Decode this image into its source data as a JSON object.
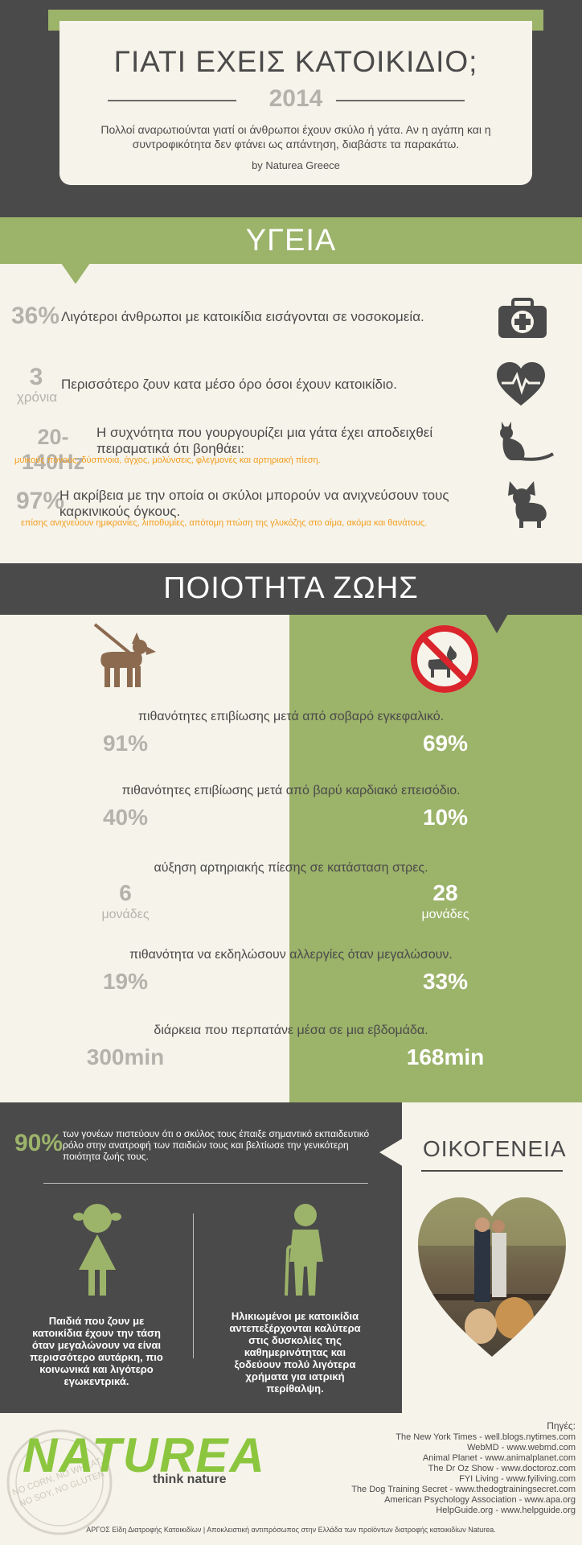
{
  "header": {
    "title": "ΓΙΑΤΙ ΕΧΕΙΣ ΚΑΤΟΙΚΙΔΙΟ;",
    "year": "2014",
    "intro": "Πολλοί αναρωτιούνται γιατί οι άνθρωποι έχουν σκύλο ή γάτα. Αν η αγάπη και η συντροφικότητα δεν φτάνει ως απάντηση, διαβάστε τα παρακάτω.",
    "byline": "by Naturea Greece"
  },
  "health": {
    "title": "ΥΓΕΙΑ",
    "items": [
      {
        "stat": "36%",
        "stat_unit": "",
        "text": "Λιγότεροι άνθρωποι με κατοικίδια εισάγονται σε νοσοκομεία.",
        "sub": "",
        "icon": "first-aid-kit-icon"
      },
      {
        "stat": "3",
        "stat_unit": "χρόνια",
        "text": "Περισσότερο ζουν κατα μέσο όρο όσοι έχουν κατοικίδιο.",
        "sub": "",
        "icon": "heart-pulse-icon"
      },
      {
        "stat": "20-140Hz",
        "stat_unit": "",
        "text": "Η συχνότητα που γουργουρίζει μια γάτα έχει αποδειχθεί πειραματικά ότι βοηθάει:",
        "sub": "μυικούς πόνους, δύσπνοια, άγχος, μολύνσεις, φλεγμονές και αρτηριακή πίεση.",
        "icon": "cat-icon"
      },
      {
        "stat": "97%",
        "stat_unit": "",
        "text": "Η ακρίβεια με την οποία οι σκύλοι μπορούν να ανιχνεύσουν τους καρκινικούς όγκους.",
        "sub": "επίσης ανιχνεύουν ημικρανίες, λιποθυμίες, απότομη πτώση της γλυκόζης στο αίμα, ακόμα και θανάτους.",
        "icon": "dog-icon"
      }
    ]
  },
  "quality": {
    "title": "ΠΟΙΟΤΗΤΑ ΖΩΗΣ",
    "rows": [
      {
        "label": "πιθανότητες επιβίωσης μετά από σοβαρό εγκεφαλικό.",
        "with_pet": "91%",
        "with_unit": "",
        "without_pet": "69%",
        "without_unit": ""
      },
      {
        "label": "πιθανότητες επιβίωσης μετά από βαρύ καρδιακό επεισόδιο.",
        "with_pet": "40%",
        "with_unit": "",
        "without_pet": "10%",
        "without_unit": ""
      },
      {
        "label": "αύξηση αρτηριακής πίεσης σε κατάσταση στρες.",
        "with_pet": "6",
        "with_unit": "μονάδες",
        "without_pet": "28",
        "without_unit": "μονάδες"
      },
      {
        "label": "πιθανότητα να εκδηλώσουν αλλεργίες όταν μεγαλώσουν.",
        "with_pet": "19%",
        "with_unit": "",
        "without_pet": "33%",
        "without_unit": ""
      },
      {
        "label": "διάρκεια που περπατάνε μέσα σε μια εβδομάδα.",
        "with_pet": "300min",
        "with_unit": "",
        "without_pet": "168min",
        "without_unit": ""
      }
    ]
  },
  "family": {
    "title": "ΟΙΚΟΓΕΝΕΙΑ",
    "stat": "90%",
    "stat_text": "των γονέων πιστεύουν ότι ο σκύλος τους έπαιξε σημαντικό εκπαιδευτικό ρόλο στην ανατροφή των παιδιών τους και βελτίωσε την γενικότερη ποιότητα ζωής τους.",
    "child_text": "Παιδιά που ζουν με κατοικίδια έχουν την τάση όταν μεγαλώνουν να είναι περισσότερο αυτάρκη, πιο κοινωνικά και λιγότερο εγωκεντρικά.",
    "elder_text": "Ηλικιωμένοι με κατοικίδια αντεπεξέρχονται καλύτερα στις δυσκολίες της καθημερινότητας και ξοδεύουν πολύ λιγότερα χρήματα για ιατρική περίθαλψη."
  },
  "footer": {
    "logo": "NATUREA",
    "tagline": "think nature",
    "stamp": "NATUREA NO CORN, NO WHEAT, NO SOY, NO GLUTEN",
    "sources_title": "Πηγές:",
    "sources": [
      "The New York Times - well.blogs.nytimes.com",
      "WebMD - www.webmd.com",
      "Animal Planet - www.animalplanet.com",
      "The Dr Oz Show - www.doctoroz.com",
      "FYI Living - www.fyiliving.com",
      "The Dog Training Secret - www.thedogtrainingsecret.com",
      "American Psychology Association - www.apa.org",
      "HelpGuide.org - www.helpguide.org"
    ],
    "bottom": "ΑΡΓΟΣ Είδη Διατροφής Κατοικιδίων | Αποκλειστική αντιπρόσωπος στην Ελλάδα των προϊόντων διατροφής κατοικιδίων Naturea."
  },
  "colors": {
    "green": "#9cb36a",
    "dark": "#4a4a4a",
    "cream": "#f6f3ea",
    "orange": "#f29d1d",
    "red": "#d9252b",
    "brown": "#8b6a4f"
  }
}
